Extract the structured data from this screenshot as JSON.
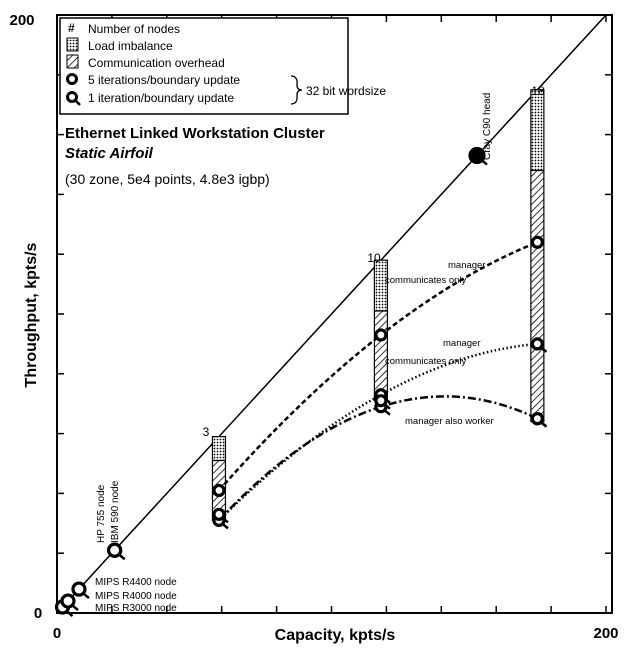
{
  "chart_data": {
    "type": "scatter",
    "xlabel": "Capacity, kpts/s",
    "ylabel": "Throughput, kpts/s",
    "xlim": [
      0,
      200
    ],
    "ylim": [
      0,
      200
    ],
    "x_tick_labels": [
      "0",
      "200"
    ],
    "y_tick_labels": [
      "0",
      "200"
    ],
    "title": "Ethernet Linked Workstation Cluster",
    "subtitle": "Static Airfoil",
    "note": "(30 zone, 5e4 points, 4.8e3 igbp)",
    "legend_position": "top-left",
    "legend": {
      "nodes": "Number of nodes",
      "load": "Load imbalance",
      "comm": "Communication overhead",
      "five_iter": "5 iterations/boundary update",
      "one_iter": "1 iteration/boundary update",
      "wordsize": "32 bit wordsize"
    },
    "ideal_line": [
      [
        0,
        0
      ],
      [
        200,
        200
      ]
    ],
    "single_nodes": [
      {
        "label": "MIPS R3000 node",
        "x": 2,
        "y": 2
      },
      {
        "label": "MIPS R4000 node",
        "x": 4,
        "y": 4
      },
      {
        "label": "MIPS R4400 node",
        "x": 8,
        "y": 8
      },
      {
        "label": "HP 755 node",
        "x": 21,
        "y": 21
      },
      {
        "label": "IBM 590 node",
        "x": 21,
        "y": 21
      },
      {
        "label": "Cray C90 head",
        "x": 153,
        "y": 153
      }
    ],
    "bars": [
      {
        "nodes": "3",
        "x": 59,
        "top": 59,
        "load_bottom": 51,
        "comm_bottom": 31
      },
      {
        "nodes": "10",
        "x": 118,
        "top": 118,
        "load_bottom": 101,
        "comm_bottom": 71
      },
      {
        "nodes": "18",
        "x": 175,
        "top": 175,
        "load_bottom": 148,
        "comm_bottom": 64
      }
    ],
    "series": [
      {
        "name": "manager communicates only",
        "style": "dashed",
        "iterations": 5,
        "points": [
          [
            59,
            41
          ],
          [
            118,
            93
          ],
          [
            175,
            124
          ]
        ]
      },
      {
        "name": "manager communicates only",
        "style": "dotted",
        "iterations": 1,
        "points": [
          [
            59,
            31
          ],
          [
            118,
            73
          ],
          [
            175,
            90
          ]
        ]
      },
      {
        "name": "manager also worker",
        "style": "dash-dot",
        "iterations": 1,
        "points": [
          [
            59,
            31
          ],
          [
            118,
            69
          ],
          [
            175,
            65
          ]
        ]
      }
    ],
    "lower_points": [
      {
        "x": 59,
        "y": 33
      },
      {
        "x": 118,
        "y": 71
      },
      {
        "x": 175,
        "y": 65
      }
    ]
  }
}
